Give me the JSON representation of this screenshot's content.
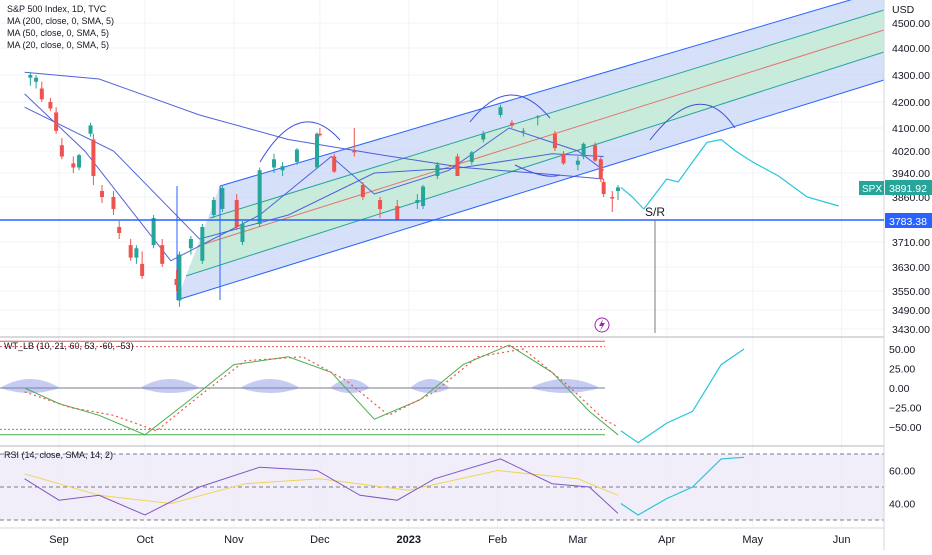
{
  "header": {
    "title": "S&P 500 Index, 1D, TVC",
    "indicators": [
      "MA (200, close, 0, SMA, 5)",
      "MA (50, close, 0, SMA, 5)",
      "MA (20, close, 0, SMA, 5)"
    ]
  },
  "price_axis": {
    "unit": "USD",
    "ticks": [
      "4500.00",
      "4400.00",
      "4300.00",
      "4200.00",
      "4100.00",
      "4020.00",
      "3940.00",
      "3860.00",
      "3783.38",
      "3710.00",
      "3630.00",
      "3550.00",
      "3490.00",
      "3430.00"
    ],
    "symbol_label": "SPX",
    "last_price": "3891.92",
    "support_price": "3783.38"
  },
  "annotations": {
    "sr_label": "S/R"
  },
  "wavetrend": {
    "label": "WT_LB (10, 21, 60, 53, -60, -53)",
    "ticks": [
      "50.00",
      "25.00",
      "0.00",
      "−25.00",
      "−50.00"
    ]
  },
  "rsi": {
    "label": "RSI (14, close, SMA, 14, 2)",
    "ticks": [
      "60.00",
      "40.00"
    ]
  },
  "time_axis": {
    "labels": [
      "Sep",
      "Oct",
      "Nov",
      "Dec",
      "2023",
      "Feb",
      "Mar",
      "Apr",
      "May",
      "Jun"
    ]
  },
  "colors": {
    "up": "#26a69a",
    "down": "#ef5350",
    "channel_fill": "#c9d6f7",
    "channel_inner": "#c7ecd6",
    "ma_line": "#3f51d8",
    "support_line": "#2962ff",
    "projection": "#26c6da",
    "rsi_line": "#7e57c2",
    "rsi_ma": "#f0d354"
  },
  "chart_data": {
    "type": "candlestick",
    "title": "S&P 500 Index, 1D, TVC",
    "x_range": [
      "2022-08-18",
      "2023-06-20"
    ],
    "y_range": [
      3400,
      4600
    ],
    "last_close": 3891.92,
    "support_level": 3783.38,
    "series": [
      {
        "name": "MA (200, close, 0, SMA, 5)",
        "points": [
          [
            "2022-08-20",
            4310
          ],
          [
            "2022-09-15",
            4285
          ],
          [
            "2022-10-20",
            4150
          ],
          [
            "2022-11-20",
            4060
          ],
          [
            "2022-12-20",
            4010
          ],
          [
            "2023-01-20",
            3960
          ],
          [
            "2023-02-20",
            3935
          ],
          [
            "2023-03-10",
            3920
          ]
        ]
      },
      {
        "name": "MA (50, close, 0, SMA, 5)",
        "points": [
          [
            "2022-08-20",
            4180
          ],
          [
            "2022-09-20",
            4020
          ],
          [
            "2022-10-20",
            3720
          ],
          [
            "2022-11-20",
            3800
          ],
          [
            "2022-12-20",
            3940
          ],
          [
            "2023-01-20",
            3960
          ],
          [
            "2023-02-20",
            4010
          ],
          [
            "2023-03-10",
            4000
          ]
        ]
      },
      {
        "name": "MA (20, close, 0, SMA, 5)",
        "points": [
          [
            "2022-08-20",
            4230
          ],
          [
            "2022-09-10",
            4020
          ],
          [
            "2022-10-10",
            3650
          ],
          [
            "2022-11-10",
            3800
          ],
          [
            "2022-12-05",
            4000
          ],
          [
            "2022-12-20",
            3870
          ],
          [
            "2023-01-15",
            3950
          ],
          [
            "2023-02-05",
            4100
          ],
          [
            "2023-03-01",
            4020
          ],
          [
            "2023-03-10",
            3950
          ]
        ]
      }
    ],
    "candles": [
      [
        "2022-08-22",
        4290,
        4310,
        4260,
        4300
      ],
      [
        "2022-08-24",
        4275,
        4300,
        4250,
        4290
      ],
      [
        "2022-08-26",
        4250,
        4275,
        4200,
        4210
      ],
      [
        "2022-08-29",
        4200,
        4215,
        4165,
        4175
      ],
      [
        "2022-08-31",
        4160,
        4180,
        4080,
        4090
      ],
      [
        "2022-09-02",
        4040,
        4065,
        3990,
        4000
      ],
      [
        "2022-09-06",
        3975,
        4000,
        3940,
        3960
      ],
      [
        "2022-09-08",
        3960,
        4010,
        3950,
        4005
      ],
      [
        "2022-09-12",
        4080,
        4120,
        4070,
        4110
      ],
      [
        "2022-09-13",
        4060,
        4080,
        3900,
        3930
      ],
      [
        "2022-09-16",
        3880,
        3900,
        3840,
        3860
      ],
      [
        "2022-09-20",
        3860,
        3880,
        3800,
        3820
      ],
      [
        "2022-09-22",
        3760,
        3780,
        3720,
        3740
      ],
      [
        "2022-09-26",
        3700,
        3720,
        3650,
        3660
      ],
      [
        "2022-09-28",
        3660,
        3700,
        3640,
        3690
      ],
      [
        "2022-09-30",
        3640,
        3680,
        3590,
        3600
      ],
      [
        "2022-10-04",
        3700,
        3800,
        3690,
        3790
      ],
      [
        "2022-10-07",
        3700,
        3720,
        3630,
        3640
      ],
      [
        "2022-10-12",
        3590,
        3620,
        3550,
        3570
      ],
      [
        "2022-10-13",
        3520,
        3680,
        3500,
        3670
      ],
      [
        "2022-10-17",
        3690,
        3730,
        3670,
        3720
      ],
      [
        "2022-10-21",
        3650,
        3770,
        3640,
        3760
      ],
      [
        "2022-10-25",
        3800,
        3860,
        3790,
        3850
      ],
      [
        "2022-10-28",
        3820,
        3900,
        3810,
        3890
      ],
      [
        "2022-11-02",
        3850,
        3870,
        3750,
        3760
      ],
      [
        "2022-11-04",
        3710,
        3780,
        3700,
        3770
      ],
      [
        "2022-11-10",
        3770,
        3960,
        3760,
        3950
      ],
      [
        "2022-11-15",
        3960,
        4010,
        3940,
        3990
      ],
      [
        "2022-11-18",
        3950,
        3980,
        3930,
        3965
      ],
      [
        "2022-11-23",
        3980,
        4030,
        3970,
        4025
      ],
      [
        "2022-11-30",
        3960,
        4085,
        3955,
        4080
      ],
      [
        "2022-12-01",
        4080,
        4100,
        4070,
        4075
      ],
      [
        "2022-12-06",
        4000,
        4010,
        3940,
        3945
      ],
      [
        "2022-12-13",
        4020,
        4100,
        4000,
        4015
      ],
      [
        "2022-12-16",
        3900,
        3910,
        3850,
        3860
      ],
      [
        "2022-12-22",
        3850,
        3860,
        3790,
        3820
      ],
      [
        "2022-12-28",
        3830,
        3850,
        3780,
        3785
      ],
      [
        "2023-01-04",
        3840,
        3870,
        3820,
        3850
      ],
      [
        "2023-01-06",
        3830,
        3900,
        3820,
        3895
      ],
      [
        "2023-01-11",
        3930,
        3980,
        3920,
        3970
      ],
      [
        "2023-01-18",
        4000,
        4010,
        3930,
        3930
      ],
      [
        "2023-01-23",
        3980,
        4020,
        3970,
        4015
      ],
      [
        "2023-01-27",
        4060,
        4090,
        4050,
        4080
      ],
      [
        "2023-02-02",
        4150,
        4190,
        4140,
        4180
      ],
      [
        "2023-02-06",
        4120,
        4130,
        4100,
        4110
      ],
      [
        "2023-02-10",
        4090,
        4100,
        4070,
        4090
      ],
      [
        "2023-02-15",
        4140,
        4150,
        4110,
        4145
      ],
      [
        "2023-02-21",
        4080,
        4090,
        4020,
        4030
      ],
      [
        "2023-02-24",
        4010,
        4020,
        3970,
        3975
      ],
      [
        "2023-03-01",
        3970,
        4000,
        3950,
        3985
      ],
      [
        "2023-03-03",
        4000,
        4050,
        3990,
        4045
      ],
      [
        "2023-03-07",
        4040,
        4050,
        3980,
        3985
      ],
      [
        "2023-03-09",
        3990,
        4000,
        3910,
        3920
      ],
      [
        "2023-03-10",
        3910,
        3920,
        3860,
        3870
      ],
      [
        "2023-03-13",
        3860,
        3880,
        3810,
        3855
      ],
      [
        "2023-03-15",
        3880,
        3900,
        3850,
        3892
      ]
    ],
    "projection": [
      [
        "2023-03-16",
        3892
      ],
      [
        "2023-03-20",
        3860
      ],
      [
        "2023-03-24",
        3820
      ],
      [
        "2023-03-28",
        3870
      ],
      [
        "2023-04-01",
        3920
      ],
      [
        "2023-04-05",
        3910
      ],
      [
        "2023-04-10",
        3980
      ],
      [
        "2023-04-15",
        4050
      ],
      [
        "2023-04-20",
        4060
      ],
      [
        "2023-04-25",
        4020
      ],
      [
        "2023-05-01",
        3980
      ],
      [
        "2023-05-10",
        3930
      ],
      [
        "2023-05-20",
        3860
      ],
      [
        "2023-05-31",
        3830
      ]
    ],
    "wavetrend": {
      "series": [
        {
          "name": "WT1",
          "points": [
            [
              "2022-08-20",
              0
            ],
            [
              "2022-09-01",
              -20
            ],
            [
              "2022-09-15",
              -35
            ],
            [
              "2022-10-01",
              -60
            ],
            [
              "2022-10-15",
              -20
            ],
            [
              "2022-11-01",
              30
            ],
            [
              "2022-11-20",
              40
            ],
            [
              "2022-12-05",
              20
            ],
            [
              "2022-12-20",
              -40
            ],
            [
              "2023-01-05",
              -15
            ],
            [
              "2023-01-20",
              30
            ],
            [
              "2023-02-05",
              55
            ],
            [
              "2023-02-20",
              20
            ],
            [
              "2023-03-05",
              -30
            ],
            [
              "2023-03-15",
              -60
            ]
          ]
        },
        {
          "name": "WT2",
          "points": [
            [
              "2022-08-20",
              -5
            ],
            [
              "2022-09-05",
              -25
            ],
            [
              "2022-09-20",
              -35
            ],
            [
              "2022-10-05",
              -55
            ],
            [
              "2022-10-20",
              -10
            ],
            [
              "2022-11-05",
              35
            ],
            [
              "2022-11-25",
              40
            ],
            [
              "2022-12-10",
              10
            ],
            [
              "2022-12-25",
              -35
            ],
            [
              "2023-01-10",
              -5
            ],
            [
              "2023-01-25",
              40
            ],
            [
              "2023-02-10",
              50
            ],
            [
              "2023-02-25",
              5
            ],
            [
              "2023-03-10",
              -40
            ],
            [
              "2023-03-15",
              -50
            ]
          ]
        }
      ],
      "projection": [
        [
          "2023-03-16",
          -55
        ],
        [
          "2023-03-22",
          -70
        ],
        [
          "2023-04-01",
          -45
        ],
        [
          "2023-04-10",
          -30
        ],
        [
          "2023-04-20",
          30
        ],
        [
          "2023-04-28",
          50
        ]
      ],
      "overbought": 53,
      "oversold": -53,
      "extremes": [
        60,
        -60
      ]
    },
    "rsi": {
      "series": [
        {
          "name": "RSI",
          "points": [
            [
              "2022-08-20",
              55
            ],
            [
              "2022-09-01",
              42
            ],
            [
              "2022-09-15",
              45
            ],
            [
              "2022-10-01",
              33
            ],
            [
              "2022-10-20",
              50
            ],
            [
              "2022-11-10",
              62
            ],
            [
              "2022-11-30",
              60
            ],
            [
              "2022-12-15",
              45
            ],
            [
              "2022-12-28",
              42
            ],
            [
              "2023-01-10",
              55
            ],
            [
              "2023-02-02",
              67
            ],
            [
              "2023-02-20",
              52
            ],
            [
              "2023-03-05",
              50
            ],
            [
              "2023-03-15",
              34
            ]
          ]
        },
        {
          "name": "RSI MA",
          "points": [
            [
              "2022-08-20",
              58
            ],
            [
              "2022-09-15",
              45
            ],
            [
              "2022-10-10",
              40
            ],
            [
              "2022-11-05",
              52
            ],
            [
              "2022-12-01",
              55
            ],
            [
              "2023-01-01",
              48
            ],
            [
              "2023-02-01",
              60
            ],
            [
              "2023-03-01",
              55
            ],
            [
              "2023-03-15",
              45
            ]
          ]
        }
      ],
      "projection": [
        [
          "2023-03-16",
          40
        ],
        [
          "2023-03-22",
          33
        ],
        [
          "2023-04-01",
          43
        ],
        [
          "2023-04-10",
          50
        ],
        [
          "2023-04-20",
          67
        ],
        [
          "2023-04-28",
          68
        ]
      ],
      "levels": [
        70,
        50,
        30
      ]
    }
  }
}
